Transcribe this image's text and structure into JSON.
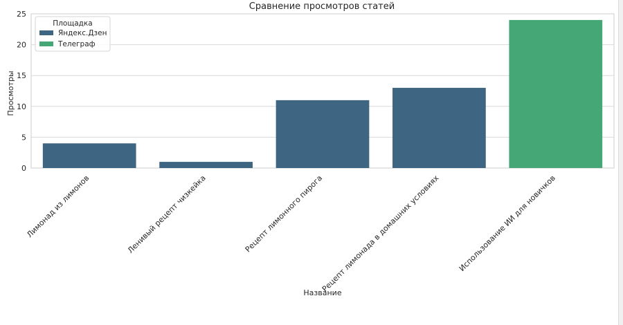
{
  "chart_data": {
    "type": "bar",
    "title": "Сравнение просмотров статей",
    "xlabel": "Название",
    "ylabel": "Просмотры",
    "ylim": [
      0,
      25
    ],
    "yticks": [
      0,
      5,
      10,
      15,
      20,
      25
    ],
    "grid": "horizontal",
    "categories": [
      "Лимонад из лимонов",
      "Ленивый рецепт чизкейка",
      "Рецепт лимонного пирога",
      "Рецепт лимонада в домашних условиях",
      "Использование ИИ для новичков"
    ],
    "values": [
      4,
      1,
      11,
      13,
      24
    ],
    "platforms": [
      "Яндекс.Дзен",
      "Яндекс.Дзен",
      "Яндекс.Дзен",
      "Яндекс.Дзен",
      "Телеграф"
    ],
    "legend": {
      "title": "Площадка",
      "placement": "top-left",
      "entries": [
        {
          "name": "Яндекс.Дзен",
          "color": "#3e6582"
        },
        {
          "name": "Телеграф",
          "color": "#44a775"
        }
      ]
    }
  }
}
